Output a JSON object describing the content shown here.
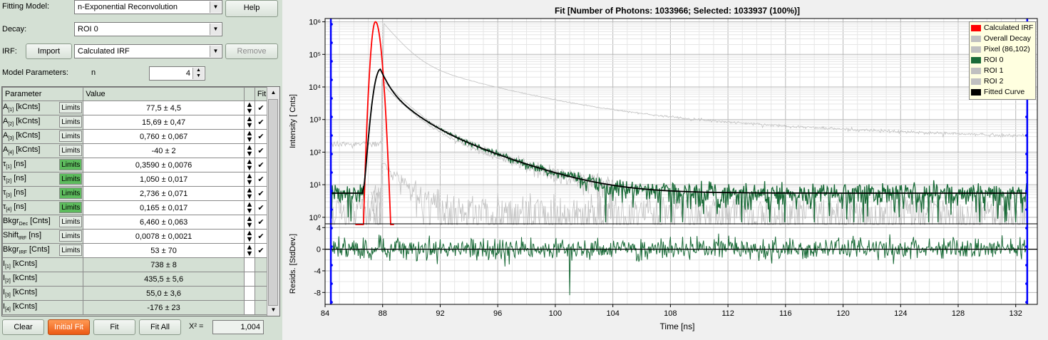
{
  "panel": {
    "fitting_model_label": "Fitting Model:",
    "fitting_model_value": "n-Exponential Reconvolution",
    "help_button": "Help",
    "decay_label": "Decay:",
    "decay_value": "ROI 0",
    "irf_label": "IRF:",
    "import_button": "Import",
    "irf_value": "Calculated IRF",
    "remove_button": "Remove",
    "model_params_label": "Model Parameters:",
    "n_label": "n",
    "n_value": "4"
  },
  "table": {
    "headers": [
      "Parameter",
      "Value",
      "Fit"
    ],
    "limits_label": "Limits",
    "rows": [
      {
        "name": "A",
        "sub": "[1]",
        "unit": " [kCnts]",
        "value": "77,5 ± 4,5",
        "limits_green": false
      },
      {
        "name": "A",
        "sub": "[2]",
        "unit": " [kCnts]",
        "value": "15,69 ± 0,47",
        "limits_green": false
      },
      {
        "name": "A",
        "sub": "[3]",
        "unit": " [kCnts]",
        "value": "0,760 ± 0,067",
        "limits_green": false
      },
      {
        "name": "A",
        "sub": "[4]",
        "unit": " [kCnts]",
        "value": "-40 ± 2",
        "limits_green": false
      },
      {
        "name": "τ",
        "sub": "[1]",
        "unit": " [ns]",
        "value": "0,3590 ± 0,0076",
        "limits_green": true
      },
      {
        "name": "τ",
        "sub": "[2]",
        "unit": " [ns]",
        "value": "1,050 ± 0,017",
        "limits_green": true
      },
      {
        "name": "τ",
        "sub": "[3]",
        "unit": " [ns]",
        "value": "2,736 ± 0,071",
        "limits_green": true
      },
      {
        "name": "τ",
        "sub": "[4]",
        "unit": " [ns]",
        "value": "0,165 ± 0,017",
        "limits_green": true
      },
      {
        "name": "Bkgr",
        "sub": "Dec",
        "unit": " [Cnts]",
        "value": "6,460 ± 0,063",
        "limits_green": false
      },
      {
        "name": "Shift",
        "sub": "IRF",
        "unit": " [ns]",
        "value": "0,0078 ± 0,0021",
        "limits_green": false
      },
      {
        "name": "Bkgr",
        "sub": "IRF",
        "unit": " [Cnts]",
        "value": "53 ± 70",
        "limits_green": false
      }
    ],
    "derived": [
      {
        "name": "I",
        "sub": "[1]",
        "unit": " [kCnts]",
        "value": "738 ± 8"
      },
      {
        "name": "I",
        "sub": "[2]",
        "unit": " [kCnts]",
        "value": "435,5 ± 5,6"
      },
      {
        "name": "I",
        "sub": "[3]",
        "unit": " [kCnts]",
        "value": "55,0 ± 3,6"
      },
      {
        "name": "I",
        "sub": "[4]",
        "unit": " [kCnts]",
        "value": "-176 ± 23"
      }
    ]
  },
  "bottom": {
    "clear_button": "Clear",
    "initial_fit_button": "Initial Fit",
    "fit_button": "Fit",
    "fit_all_button": "Fit All",
    "chi2_label": "X² =",
    "chi2_value": "1,004"
  },
  "colors": {
    "calculated_irf": "#ff0000",
    "overall_decay": "#c0c0c0",
    "pixel": "#c0c0c0",
    "roi0": "#1a6b38",
    "roi1": "#c0c0c0",
    "roi2": "#c0c0c0",
    "fitted_curve": "#000000",
    "cursor": "#0000ff"
  },
  "chart_data": {
    "type": "line",
    "title": "Fit [Number of Photons: 1033966; Selected: 1033937 (100%)]",
    "xlabel": "Time [ns]",
    "ylabel_top": "Intensity [ Cnts]",
    "ylabel_bottom": "Resids. [StdDev.]",
    "x_ticks": [
      "84",
      "88",
      "92",
      "96",
      "100",
      "104",
      "108",
      "112",
      "116",
      "120",
      "124",
      "128",
      "132"
    ],
    "y_ticks_top": [
      "10⁰",
      "10¹",
      "10²",
      "10³",
      "10⁴",
      "10⁵",
      "10⁶"
    ],
    "y_ticks_bottom": [
      "4",
      "0",
      "-4",
      "-8"
    ],
    "xlim": [
      84,
      133.5
    ],
    "ylim_top_log10": [
      -0.2,
      6.1
    ],
    "ylim_bottom": [
      4.7,
      -10.2
    ],
    "log_scale_top": true,
    "grid": true,
    "legend_position": "top-right",
    "legend": [
      "Calculated IRF",
      "Overall Decay",
      "Pixel (86,102)",
      "ROI 0",
      "ROI 1",
      "ROI 2",
      "Fitted Curve"
    ],
    "cursors_x": [
      84.4,
      132.8
    ],
    "irf_peak": {
      "x": 87.5,
      "y": 1000000
    },
    "fit_peak": {
      "x": 88.0,
      "y": 35000
    },
    "fit_background": 5.5,
    "overall_decay_start": {
      "x": 88.1,
      "y": 1000000
    },
    "overall_decay_end": {
      "x": 132.8,
      "y": 220
    }
  }
}
